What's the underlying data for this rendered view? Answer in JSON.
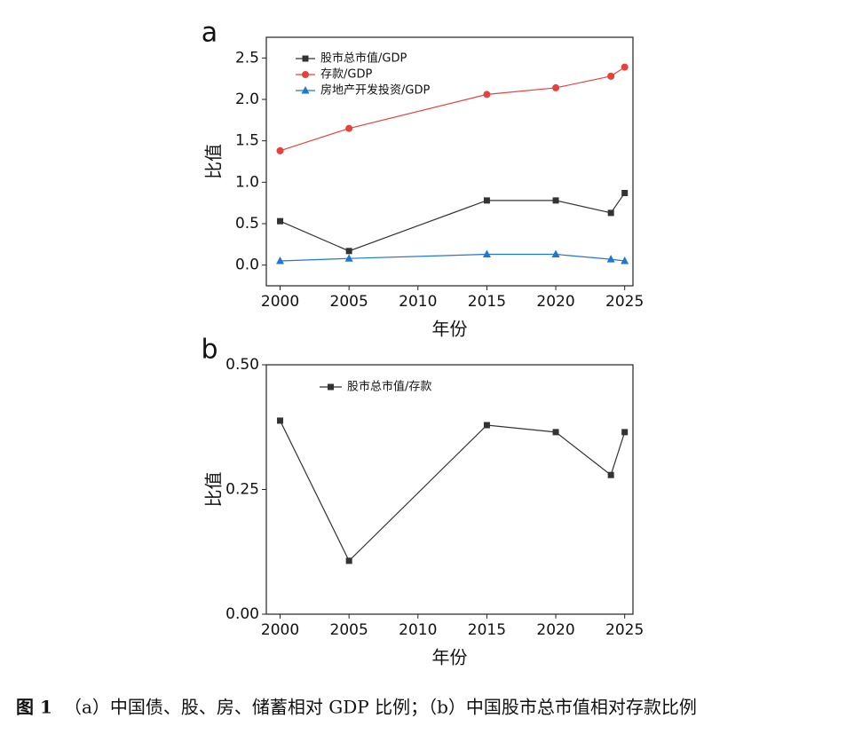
{
  "chart_data": [
    {
      "type": "line",
      "panel_label": "a",
      "x_label": "年份",
      "y_label": "比值",
      "x": [
        2000,
        2005,
        2015,
        2020,
        2024,
        2025
      ],
      "series": [
        {
          "name": "股市总市值/GDP",
          "color": "#333333",
          "marker": "square",
          "values": [
            0.53,
            0.17,
            0.78,
            0.78,
            0.63,
            0.87
          ]
        },
        {
          "name": "存款/GDP",
          "color": "#e8413c",
          "marker": "circle",
          "values": [
            1.38,
            1.65,
            2.06,
            2.14,
            2.28,
            2.39
          ]
        },
        {
          "name": "房地产开发投资/GDP",
          "color": "#1f77d0",
          "marker": "triangle",
          "values": [
            0.05,
            0.08,
            0.13,
            0.13,
            0.07,
            0.05
          ]
        }
      ],
      "xlim": [
        1999,
        2025.6
      ],
      "xticks": [
        2000,
        2005,
        2010,
        2015,
        2020,
        2025
      ],
      "ylim": [
        -0.25,
        2.75
      ],
      "yticks": [
        {
          "value": 0,
          "label": "0.0"
        },
        0.5,
        {
          "value": 1,
          "label": "1.0"
        },
        1.5,
        {
          "value": 2,
          "label": "2.0"
        },
        2.5
      ],
      "legend": "top-left"
    },
    {
      "type": "line",
      "panel_label": "b",
      "x_label": "年份",
      "y_label": "比值",
      "x": [
        2000,
        2005,
        2015,
        2020,
        2024,
        2025
      ],
      "series": [
        {
          "name": "股市总市值/存款",
          "color": "#333333",
          "marker": "square",
          "values": [
            0.388,
            0.107,
            0.379,
            0.365,
            0.279,
            0.365
          ]
        }
      ],
      "xlim": [
        1999,
        2025.6
      ],
      "xticks": [
        2000,
        2005,
        2010,
        2015,
        2020,
        2025
      ],
      "ylim": [
        0,
        0.5
      ],
      "yticks": [
        {
          "value": 0,
          "label": "0.00"
        },
        {
          "value": 0.25,
          "label": "0.25"
        },
        {
          "value": 0.5,
          "label": "0.50"
        }
      ],
      "legend": "top-left"
    }
  ],
  "caption": {
    "label": "图 1",
    "text": "（a）中国债、股、房、储蓄相对 GDP 比例；（b）中国股市总市值相对存款比例"
  }
}
